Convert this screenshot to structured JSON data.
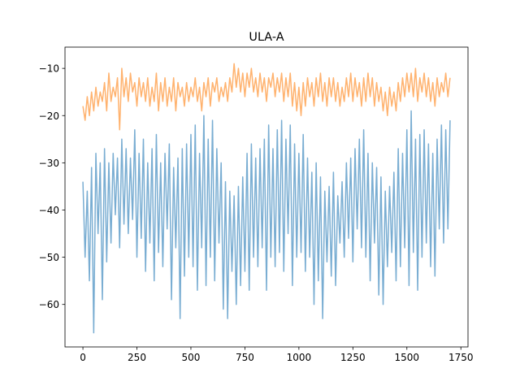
{
  "chart_data": {
    "type": "line",
    "title": "ULA-A",
    "xlabel": "",
    "ylabel": "",
    "xlim": [
      -83,
      1783
    ],
    "ylim": [
      -69,
      -5.5
    ],
    "x_ticks": [
      0,
      250,
      500,
      750,
      1000,
      1250,
      1500,
      1750
    ],
    "x_tick_labels": [
      "0",
      "250",
      "500",
      "750",
      "1000",
      "1250",
      "1500",
      "1750"
    ],
    "y_ticks": [
      -60,
      -50,
      -40,
      -30,
      -20,
      -10
    ],
    "y_tick_labels": [
      "−60",
      "−50",
      "−40",
      "−30",
      "−20",
      "−10"
    ],
    "grid": false,
    "legend": "none",
    "series": [
      {
        "color": "#1f77b4",
        "opacity": 0.6,
        "x": [
          0,
          10,
          20,
          30,
          40,
          50,
          60,
          70,
          80,
          90,
          100,
          110,
          120,
          130,
          140,
          150,
          160,
          170,
          180,
          190,
          200,
          210,
          220,
          230,
          240,
          250,
          260,
          270,
          280,
          290,
          300,
          310,
          320,
          330,
          340,
          350,
          360,
          370,
          380,
          390,
          400,
          410,
          420,
          430,
          440,
          450,
          460,
          470,
          480,
          490,
          500,
          510,
          520,
          530,
          540,
          550,
          560,
          570,
          580,
          590,
          600,
          610,
          620,
          630,
          640,
          650,
          660,
          670,
          680,
          690,
          700,
          710,
          720,
          730,
          740,
          750,
          760,
          770,
          780,
          790,
          800,
          810,
          820,
          830,
          840,
          850,
          860,
          870,
          880,
          890,
          900,
          910,
          920,
          930,
          940,
          950,
          960,
          970,
          980,
          990,
          1000,
          1010,
          1020,
          1030,
          1040,
          1050,
          1060,
          1070,
          1080,
          1090,
          1100,
          1110,
          1120,
          1130,
          1140,
          1150,
          1160,
          1170,
          1180,
          1190,
          1200,
          1210,
          1220,
          1230,
          1240,
          1250,
          1260,
          1270,
          1280,
          1290,
          1300,
          1310,
          1320,
          1330,
          1340,
          1350,
          1360,
          1370,
          1380,
          1390,
          1400,
          1410,
          1420,
          1430,
          1440,
          1450,
          1460,
          1470,
          1480,
          1490,
          1500,
          1510,
          1520,
          1530,
          1540,
          1550,
          1560,
          1570,
          1580,
          1590,
          1600,
          1610,
          1620,
          1630,
          1640,
          1650,
          1660,
          1670,
          1680,
          1690,
          1700
        ],
        "y": [
          -34,
          -50,
          -36,
          -55,
          -31,
          -66,
          -28,
          -45,
          -30,
          -59,
          -27,
          -51,
          -30,
          -47,
          -28,
          -41,
          -29,
          -48,
          -25,
          -43,
          -27,
          -45,
          -29,
          -42,
          -23,
          -50,
          -28,
          -46,
          -25,
          -53,
          -30,
          -47,
          -27,
          -55,
          -24,
          -49,
          -30,
          -52,
          -28,
          -44,
          -26,
          -59,
          -31,
          -48,
          -29,
          -63,
          -27,
          -54,
          -26,
          -50,
          -24,
          -52,
          -22,
          -57,
          -28,
          -48,
          -20,
          -56,
          -25,
          -50,
          -21,
          -55,
          -27,
          -47,
          -30,
          -61,
          -34,
          -63,
          -36,
          -53,
          -37,
          -60,
          -35,
          -56,
          -33,
          -53,
          -28,
          -57,
          -26,
          -50,
          -29,
          -52,
          -27,
          -48,
          -25,
          -57,
          -22,
          -50,
          -27,
          -52,
          -23,
          -49,
          -21,
          -53,
          -25,
          -45,
          -22,
          -56,
          -26,
          -50,
          -28,
          -49,
          -24,
          -53,
          -29,
          -50,
          -32,
          -60,
          -30,
          -55,
          -33,
          -63,
          -36,
          -51,
          -35,
          -54,
          -32,
          -56,
          -37,
          -47,
          -34,
          -50,
          -30,
          -46,
          -29,
          -51,
          -27,
          -44,
          -25,
          -48,
          -23,
          -50,
          -28,
          -55,
          -30,
          -47,
          -31,
          -58,
          -33,
          -60,
          -36,
          -52,
          -35,
          -49,
          -32,
          -55,
          -27,
          -52,
          -28,
          -48,
          -23,
          -56,
          -19,
          -49,
          -25,
          -57,
          -24,
          -50,
          -23,
          -47,
          -26,
          -52,
          -28,
          -54,
          -25,
          -44,
          -22,
          -47,
          -23,
          -44,
          -21
        ]
      },
      {
        "color": "#ff7f0e",
        "opacity": 0.6,
        "x": [
          0,
          10,
          20,
          30,
          40,
          50,
          60,
          70,
          80,
          90,
          100,
          110,
          120,
          130,
          140,
          150,
          160,
          170,
          180,
          190,
          200,
          210,
          220,
          230,
          240,
          250,
          260,
          270,
          280,
          290,
          300,
          310,
          320,
          330,
          340,
          350,
          360,
          370,
          380,
          390,
          400,
          410,
          420,
          430,
          440,
          450,
          460,
          470,
          480,
          490,
          500,
          510,
          520,
          530,
          540,
          550,
          560,
          570,
          580,
          590,
          600,
          610,
          620,
          630,
          640,
          650,
          660,
          670,
          680,
          690,
          700,
          710,
          720,
          730,
          740,
          750,
          760,
          770,
          780,
          790,
          800,
          810,
          820,
          830,
          840,
          850,
          860,
          870,
          880,
          890,
          900,
          910,
          920,
          930,
          940,
          950,
          960,
          970,
          980,
          990,
          1000,
          1010,
          1020,
          1030,
          1040,
          1050,
          1060,
          1070,
          1080,
          1090,
          1100,
          1110,
          1120,
          1130,
          1140,
          1150,
          1160,
          1170,
          1180,
          1190,
          1200,
          1210,
          1220,
          1230,
          1240,
          1250,
          1260,
          1270,
          1280,
          1290,
          1300,
          1310,
          1320,
          1330,
          1340,
          1350,
          1360,
          1370,
          1380,
          1390,
          1400,
          1410,
          1420,
          1430,
          1440,
          1450,
          1460,
          1470,
          1480,
          1490,
          1500,
          1510,
          1520,
          1530,
          1540,
          1550,
          1560,
          1570,
          1580,
          1590,
          1600,
          1610,
          1620,
          1630,
          1640,
          1650,
          1660,
          1670,
          1680,
          1690,
          1700
        ],
        "y": [
          -18,
          -21,
          -16,
          -20,
          -15,
          -19,
          -14,
          -18,
          -15,
          -17,
          -13,
          -19,
          -11,
          -17,
          -14,
          -16,
          -12,
          -23,
          -10,
          -16,
          -12,
          -17,
          -11,
          -15,
          -13,
          -18,
          -12,
          -16,
          -13,
          -17,
          -12,
          -18,
          -14,
          -17,
          -11,
          -19,
          -13,
          -17,
          -12,
          -18,
          -14,
          -17,
          -12,
          -19,
          -13,
          -16,
          -14,
          -18,
          -13,
          -17,
          -14,
          -16,
          -12,
          -17,
          -14,
          -19,
          -13,
          -16,
          -12,
          -18,
          -13,
          -15,
          -12,
          -17,
          -14,
          -16,
          -13,
          -17,
          -12,
          -15,
          -9,
          -14,
          -10,
          -15,
          -11,
          -16,
          -11,
          -14,
          -10,
          -15,
          -12,
          -16,
          -11,
          -15,
          -12,
          -17,
          -12,
          -14,
          -11,
          -16,
          -12,
          -15,
          -11,
          -17,
          -12,
          -16,
          -11,
          -18,
          -13,
          -19,
          -14,
          -20,
          -13,
          -18,
          -12,
          -16,
          -13,
          -18,
          -12,
          -16,
          -11,
          -17,
          -13,
          -18,
          -12,
          -16,
          -12,
          -17,
          -13,
          -18,
          -14,
          -17,
          -12,
          -16,
          -11,
          -17,
          -12,
          -16,
          -13,
          -18,
          -12,
          -17,
          -11,
          -16,
          -12,
          -18,
          -13,
          -17,
          -14,
          -19,
          -15,
          -20,
          -14,
          -18,
          -15,
          -19,
          -13,
          -17,
          -12,
          -16,
          -11,
          -15,
          -11,
          -16,
          -10,
          -17,
          -12,
          -15,
          -11,
          -16,
          -12,
          -17,
          -13,
          -18,
          -12,
          -16,
          -13,
          -15,
          -11,
          -16,
          -12
        ]
      }
    ]
  }
}
